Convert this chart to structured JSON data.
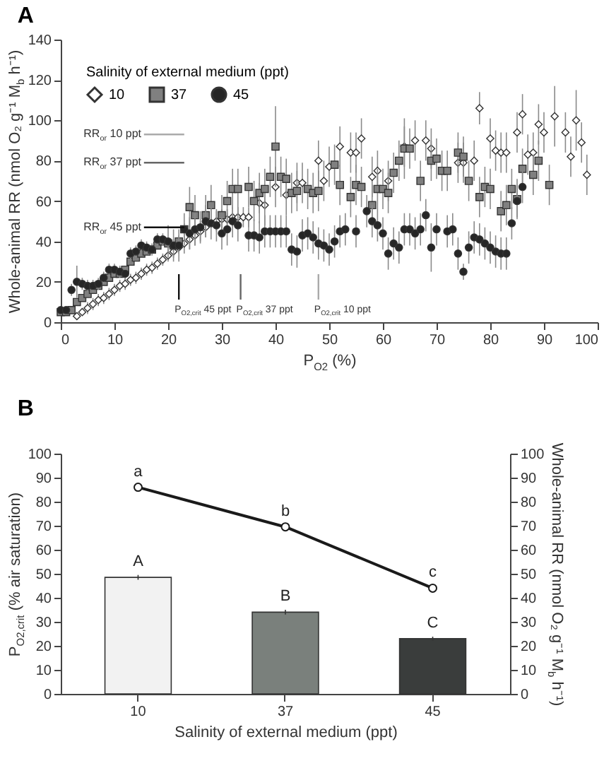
{
  "chart_data": [
    {
      "type": "scatter",
      "title": "A",
      "xlabel": "P$_{O2}$ (%)",
      "ylabel": "Whole-animal RR (nmol O₂ g⁻¹ M$_{b}$ h⁻¹)",
      "legend_title": "Salinity of external medium (ppt)",
      "legend": "top left",
      "grid": false,
      "xlim": [
        0,
        100
      ],
      "xticks": [
        0,
        10,
        20,
        30,
        40,
        50,
        60,
        70,
        80,
        90,
        100
      ],
      "ylim": [
        0,
        140
      ],
      "yticks": [
        0,
        20,
        40,
        60,
        80,
        100,
        120,
        140
      ],
      "series": [
        {
          "name": "10",
          "color": "#ffffff",
          "marker": "diamond",
          "x": [
            3,
            4,
            5,
            6,
            7,
            8,
            9,
            10,
            11,
            12,
            13,
            14,
            15,
            16,
            17,
            18,
            19,
            20,
            21,
            22,
            23,
            24,
            25,
            26,
            27,
            29,
            30,
            31,
            32,
            33,
            34,
            35,
            37,
            38,
            40,
            42,
            44,
            45,
            48,
            49,
            50,
            52,
            54,
            55,
            56,
            58,
            59,
            61,
            64,
            66,
            68,
            69,
            74,
            75,
            77,
            78,
            80,
            81,
            82,
            83,
            85,
            86,
            87,
            88,
            89,
            90,
            92,
            94,
            95,
            96,
            97,
            98
          ],
          "values": [
            3,
            5,
            7,
            9,
            11,
            12,
            14,
            16,
            18,
            19,
            21,
            22,
            24,
            26,
            27,
            29,
            31,
            33,
            35,
            37,
            39,
            41,
            43,
            45,
            47,
            50,
            51,
            51,
            52,
            52,
            52,
            52,
            59,
            58,
            67,
            63,
            69,
            69,
            80,
            70,
            77,
            87,
            84,
            84,
            91,
            72,
            75,
            70,
            87,
            90,
            90,
            86,
            79,
            79,
            80,
            106,
            91,
            85,
            84,
            84,
            94,
            103,
            83,
            84,
            98,
            94,
            102,
            94,
            82,
            100,
            89,
            73
          ],
          "errors": [
            null,
            null,
            3,
            3,
            3,
            3,
            3,
            3,
            3,
            3,
            3,
            3,
            3,
            3,
            3,
            3,
            3,
            3,
            3,
            3,
            5,
            5,
            5,
            5,
            5,
            5,
            5,
            5,
            5,
            5,
            5,
            5,
            10,
            10,
            10,
            10,
            10,
            10,
            10,
            10,
            10,
            10,
            10,
            10,
            10,
            10,
            10,
            10,
            10,
            10,
            10,
            10,
            10,
            10,
            10,
            8,
            10,
            10,
            10,
            10,
            10,
            10,
            10,
            10,
            10,
            10,
            15,
            10,
            10,
            15,
            10,
            10
          ]
        },
        {
          "name": "37",
          "color": "#808080",
          "marker": "square",
          "x": [
            0,
            1,
            2,
            3,
            4,
            5,
            6,
            7,
            8,
            9,
            10,
            11,
            12,
            13,
            14,
            15,
            16,
            17,
            18,
            19,
            20,
            21,
            22,
            23,
            24,
            25,
            27,
            28,
            30,
            31,
            32,
            33,
            35,
            36,
            37,
            38,
            39,
            40,
            41,
            42,
            43,
            44,
            46,
            47,
            48,
            51,
            52,
            54,
            55,
            56,
            58,
            59,
            60,
            61,
            62,
            63,
            64,
            65,
            67,
            69,
            70,
            71,
            72,
            74,
            75,
            76,
            78,
            79,
            80,
            82,
            83,
            84,
            85,
            86,
            88,
            89,
            91
          ],
          "values": [
            5,
            5,
            6,
            10,
            12,
            14,
            16,
            18,
            20,
            22,
            24,
            24,
            26,
            30,
            32,
            34,
            35,
            36,
            38,
            40,
            39,
            38,
            40,
            46,
            57,
            53,
            53,
            58,
            53,
            60,
            66,
            66,
            67,
            60,
            64,
            66,
            72,
            87,
            72,
            71,
            64,
            65,
            66,
            64,
            65,
            78,
            68,
            62,
            68,
            67,
            58,
            66,
            66,
            64,
            74,
            80,
            86,
            86,
            70,
            80,
            81,
            75,
            75,
            84,
            82,
            70,
            62,
            67,
            66,
            55,
            58,
            66,
            61,
            76,
            73,
            80,
            68
          ],
          "errors": [
            null,
            null,
            null,
            null,
            null,
            null,
            null,
            null,
            null,
            null,
            null,
            null,
            null,
            null,
            null,
            null,
            null,
            null,
            null,
            null,
            3,
            3,
            3,
            3,
            10,
            10,
            10,
            10,
            10,
            10,
            10,
            10,
            10,
            10,
            10,
            10,
            10,
            20,
            10,
            10,
            10,
            10,
            10,
            10,
            10,
            10,
            10,
            10,
            10,
            10,
            10,
            10,
            10,
            10,
            10,
            10,
            15,
            10,
            10,
            10,
            10,
            10,
            10,
            10,
            10,
            10,
            10,
            10,
            10,
            10,
            10,
            10,
            10,
            10,
            10,
            10,
            10
          ]
        },
        {
          "name": "45",
          "color": "#262626",
          "marker": "circle",
          "x": [
            0,
            1,
            2,
            3,
            4,
            5,
            6,
            7,
            8,
            9,
            10,
            11,
            12,
            13,
            14,
            15,
            16,
            17,
            18,
            19,
            20,
            21,
            22,
            23,
            24,
            25,
            26,
            27,
            28,
            29,
            30,
            31,
            32,
            33,
            35,
            36,
            37,
            38,
            39,
            40,
            41,
            42,
            43,
            44,
            45,
            46,
            47,
            48,
            49,
            50,
            51,
            52,
            53,
            55,
            57,
            58,
            59,
            60,
            61,
            62,
            63,
            64,
            65,
            66,
            67,
            68,
            69,
            70,
            72,
            73,
            74,
            75,
            76,
            77,
            78,
            79,
            80,
            81,
            82,
            83,
            84,
            85,
            86
          ],
          "values": [
            6,
            6,
            16,
            20,
            19,
            18,
            18,
            19,
            22,
            26,
            26,
            25,
            24,
            34,
            35,
            38,
            37,
            36,
            41,
            41,
            40,
            38,
            38,
            46,
            44,
            46,
            47,
            50,
            49,
            48,
            44,
            46,
            50,
            48,
            43,
            43,
            42,
            45,
            45,
            45,
            45,
            45,
            36,
            35,
            43,
            44,
            42,
            39,
            38,
            36,
            40,
            45,
            46,
            45,
            55,
            50,
            48,
            44,
            34,
            39,
            37,
            46,
            46,
            44,
            46,
            53,
            37,
            46,
            45,
            46,
            34,
            25,
            37,
            42,
            41,
            39,
            37,
            35,
            34,
            34,
            49,
            60,
            67
          ],
          "errors": [
            null,
            null,
            3,
            8,
            3,
            3,
            3,
            3,
            3,
            3,
            3,
            3,
            3,
            3,
            3,
            3,
            3,
            3,
            3,
            3,
            8,
            8,
            8,
            8,
            8,
            8,
            8,
            8,
            8,
            8,
            8,
            8,
            8,
            8,
            8,
            8,
            8,
            8,
            8,
            8,
            8,
            8,
            8,
            8,
            8,
            8,
            8,
            8,
            8,
            8,
            8,
            8,
            8,
            8,
            8,
            8,
            8,
            8,
            8,
            8,
            8,
            8,
            8,
            8,
            8,
            8,
            12,
            8,
            8,
            8,
            8,
            4,
            8,
            8,
            8,
            8,
            8,
            8,
            8,
            8,
            8,
            8,
            8
          ]
        }
      ],
      "ref_lines": [
        {
          "axis": "y",
          "value": 93,
          "label": "RR$_{or}$ 10 ppt",
          "color": "#aaaaaa"
        },
        {
          "axis": "y",
          "value": 79,
          "label": "RR$_{or}$ 37 ppt",
          "color": "#666666"
        },
        {
          "axis": "y",
          "value": 47,
          "label": "RR$_{or}$ 45 ppt",
          "color": "#111111"
        },
        {
          "axis": "x",
          "value": 22,
          "label": "P$_{O2,crit}$ 45 ppt",
          "color": "#111111"
        },
        {
          "axis": "x",
          "value": 33.5,
          "label": "P$_{O2,crit}$ 37 ppt",
          "color": "#666666"
        },
        {
          "axis": "x",
          "value": 48,
          "label": "P$_{O2,crit}$ 10 ppt",
          "color": "#aaaaaa"
        }
      ]
    },
    {
      "type": "bar",
      "title": "B",
      "xlabel": "Salinity of external medium (ppt)",
      "ylabel": "P$_{O2,crit}$ (% air saturation)",
      "y2label": "Whole-animal RR (nmol O₂ g⁻¹ M$_{b}$ h⁻¹)",
      "grid": false,
      "categories": [
        "10",
        "37",
        "45"
      ],
      "ylim": [
        0,
        100
      ],
      "yticks": [
        0,
        10,
        20,
        30,
        40,
        50,
        60,
        70,
        80,
        90,
        100
      ],
      "y2lim": [
        0,
        100
      ],
      "y2ticks": [
        0,
        10,
        20,
        30,
        40,
        50,
        60,
        70,
        80,
        90,
        100
      ],
      "series": [
        {
          "colors": [
            "#f2f2f2",
            "#7a807c",
            "#3a3d3c"
          ],
          "values": [
            48.5,
            34,
            23
          ],
          "errors": [
            1,
            1,
            0.8
          ]
        },
        {
          "type": "line",
          "axis": "y2",
          "color": "#1a1a1a",
          "marker": "circle",
          "values": [
            86,
            69.5,
            44
          ],
          "errors": [
            1,
            1.5,
            0.8
          ]
        }
      ],
      "annotations": [
        {
          "text": "a",
          "x": "10",
          "y": 86
        },
        {
          "text": "b",
          "x": "37",
          "y": 69.5
        },
        {
          "text": "c",
          "x": "45",
          "y": 44
        },
        {
          "text": "A",
          "x": "10",
          "y": 48.5
        },
        {
          "text": "B",
          "x": "37",
          "y": 34
        },
        {
          "text": "C",
          "x": "45",
          "y": 23
        }
      ]
    }
  ]
}
